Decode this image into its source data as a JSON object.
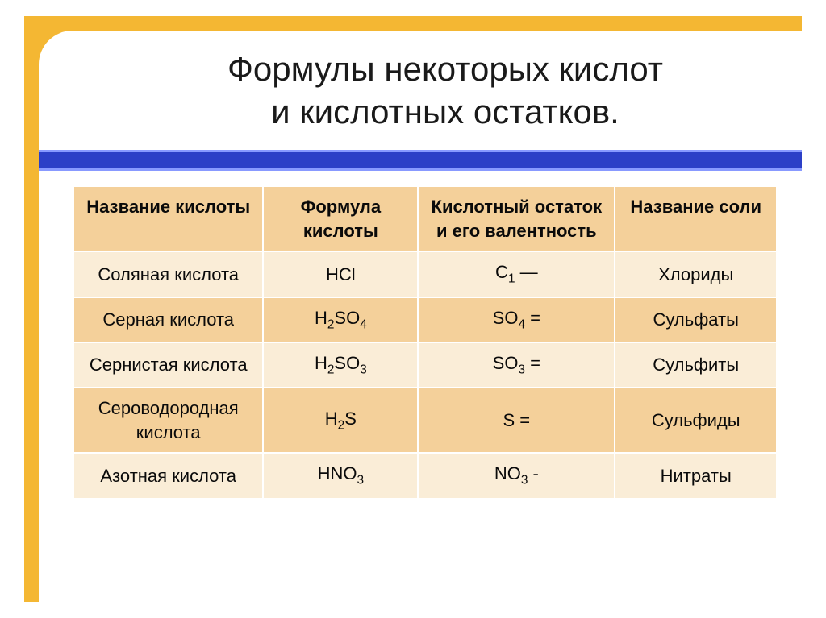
{
  "title_line1": "Формулы некоторых кислот",
  "title_line2": "и кислотных остатков.",
  "colors": {
    "frame": "#f4b733",
    "bar": "#2c3fc7",
    "header_bg": "#f4d09a",
    "row_light": "#faedd7",
    "row_dark": "#f4d09a",
    "border": "#ffffff",
    "text": "#0a0a0a"
  },
  "columns": [
    "Название кислоты",
    "Формула кислоты",
    "Кислотный остаток и его валентность",
    "Название соли"
  ],
  "rows": [
    {
      "name": "Соляная кислота",
      "formula": "HCl",
      "residue": "C1 —",
      "salt": "Хлориды"
    },
    {
      "name": "Серная кислота",
      "formula": "H2SO4",
      "residue": "SO4 =",
      "salt": "Сульфаты"
    },
    {
      "name": "Сернистая кислота",
      "formula": "H2SO3",
      "residue": "SO3 =",
      "salt": "Сульфиты"
    },
    {
      "name": "Сероводородная кислота",
      "formula": "H2S",
      "residue": "S =",
      "salt": "Сульфиды"
    },
    {
      "name": "Азотная кислота",
      "formula": "HNO3",
      "residue": "NO3 -",
      "salt": "Нитраты"
    }
  ],
  "col_widths": [
    "27%",
    "22%",
    "28%",
    "23%"
  ],
  "fontsize": {
    "title": 42,
    "cell": 22
  }
}
